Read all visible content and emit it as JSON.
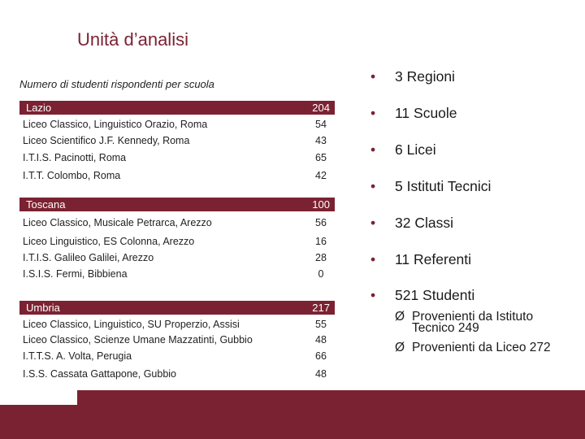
{
  "title": "Unità d’analisi",
  "subtitle": "Numero di studenti rispondenti per scuola",
  "regions": [
    {
      "name": "Lazio",
      "total": "204",
      "schools": [
        {
          "name": "Liceo Classico, Linguistico Orazio, Roma",
          "count": "54"
        },
        {
          "name": "Liceo Scientifico J.F. Kennedy, Roma",
          "count": "43"
        },
        {
          "name": "I.T.I.S. Pacinotti, Roma",
          "count": "65"
        },
        {
          "name": "I.T.T. Colombo, Roma",
          "count": "42"
        }
      ]
    },
    {
      "name": "Toscana",
      "total": "100",
      "schools": [
        {
          "name": "Liceo Classico, Musicale Petrarca, Arezzo",
          "count": "56"
        },
        {
          "name": "Liceo Linguistico, ES Colonna, Arezzo",
          "count": "16"
        },
        {
          "name": "I.T.I.S. Galileo Galilei, Arezzo",
          "count": "28"
        },
        {
          "name": "I.S.I.S. Fermi, Bibbiena",
          "count": "0"
        }
      ]
    },
    {
      "name": "Umbria",
      "total": "217",
      "schools": [
        {
          "name": "Liceo Classico, Linguistico, SU Properzio, Assisi",
          "count": "55"
        },
        {
          "name": "Liceo Classico, Scienze Umane Mazzatinti, Gubbio",
          "count": "48"
        },
        {
          "name": "I.T.T.S. A. Volta, Perugia",
          "count": "66"
        },
        {
          "name": "I.S.S. Cassata Gattapone, Gubbio",
          "count": "48"
        }
      ]
    }
  ],
  "bullets": [
    {
      "marker": "•",
      "text": "3 Regioni"
    },
    {
      "marker": "•",
      "text": "11 Scuole"
    },
    {
      "marker": "•",
      "text": "6 Licei"
    },
    {
      "marker": "•",
      "text": "5 Istituti Tecnici"
    },
    {
      "marker": "•",
      "text": "32 Classi"
    },
    {
      "marker": "•",
      "text": "11 Referenti"
    },
    {
      "marker": "•",
      "text": "521 Studenti"
    }
  ],
  "sub_bullets": [
    {
      "marker": "Ø",
      "line1": "Provenienti da Istituto",
      "line2": "Tecnico 249"
    },
    {
      "marker": "Ø",
      "line1": "Provenienti da Liceo 272"
    }
  ],
  "colors": {
    "accent": "#7b2232"
  }
}
